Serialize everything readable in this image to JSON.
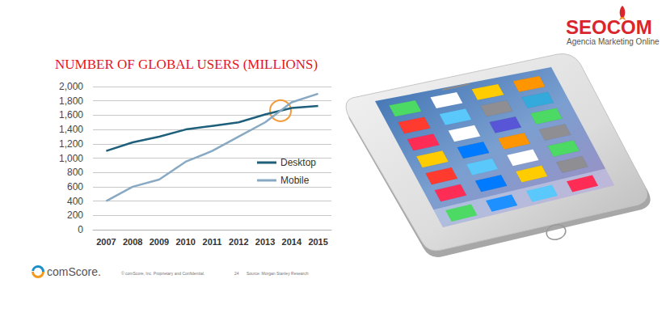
{
  "chart_data": {
    "type": "line",
    "title": "NUMBER OF GLOBAL USERS (MILLIONS)",
    "categories": [
      "2007",
      "2008",
      "2009",
      "2010",
      "2011",
      "2012",
      "2013",
      "2014",
      "2015"
    ],
    "series": [
      {
        "name": "Desktop",
        "color": "#1e5f7b",
        "values": [
          1100,
          1220,
          1300,
          1400,
          1450,
          1500,
          1610,
          1700,
          1730
        ]
      },
      {
        "name": "Mobile",
        "color": "#87a9c4",
        "values": [
          400,
          600,
          700,
          950,
          1100,
          1300,
          1500,
          1780,
          1900
        ]
      }
    ],
    "ylim": [
      0,
      2000
    ],
    "yticks": [
      0,
      200,
      400,
      600,
      800,
      {
        "value": 1000,
        "label": "1,000"
      },
      {
        "value": 1200,
        "label": "1,200"
      },
      {
        "value": 1400,
        "label": "1,400"
      },
      {
        "value": 1600,
        "label": "1,600"
      },
      {
        "value": 1800,
        "label": "1,800"
      },
      {
        "value": 2000,
        "label": "2,000"
      }
    ],
    "grid": true,
    "legend": "right",
    "marker": "none",
    "annotations": {
      "brand": "SEOCOM",
      "tagline": "Agencia Marketing Online",
      "source_logo": "comScore.",
      "copyright": "© comScore, Inc. Proprietary and Confidential.",
      "page": 24,
      "source": "Source: Morgan Stanley Research"
    }
  }
}
